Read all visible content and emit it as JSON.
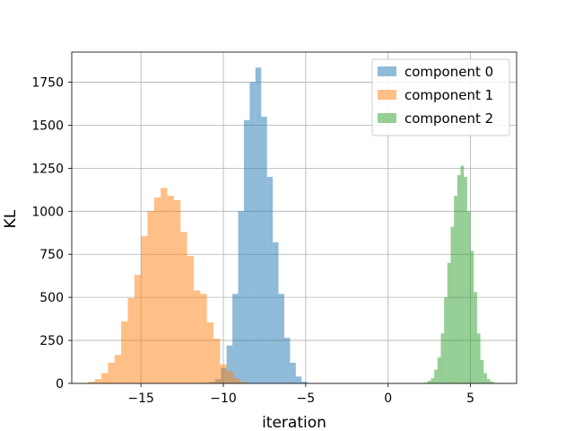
{
  "chart_data": {
    "type": "bar",
    "subtype": "histogram",
    "title": "",
    "xlabel": "iteration",
    "ylabel": "KL",
    "xlim": [
      -19.2,
      7.8
    ],
    "ylim": [
      0,
      1925
    ],
    "xticks": [
      -15,
      -10,
      -5,
      0,
      5
    ],
    "xtick_labels": [
      "−15",
      "−10",
      "−5",
      "0",
      "5"
    ],
    "yticks": [
      0,
      250,
      500,
      750,
      1000,
      1250,
      1500,
      1750
    ],
    "ytick_labels": [
      "0",
      "250",
      "500",
      "750",
      "1000",
      "1250",
      "1500",
      "1750"
    ],
    "grid": true,
    "legend_position": "top-right",
    "series": [
      {
        "name": "component 0",
        "color": "#1f77b4",
        "opacity": 0.5,
        "bin_edges": [
          -11.2,
          -10.85,
          -10.5,
          -10.15,
          -9.8,
          -9.45,
          -9.1,
          -8.75,
          -8.4,
          -8.05,
          -7.7,
          -7.35,
          -7.0,
          -6.65,
          -6.3,
          -5.95,
          -5.6,
          -5.25,
          -4.9
        ],
        "counts": [
          3,
          8,
          25,
          90,
          220,
          520,
          1000,
          1530,
          1750,
          1835,
          1550,
          1200,
          820,
          520,
          265,
          120,
          40,
          10
        ]
      },
      {
        "name": "component 1",
        "color": "#ff7f0e",
        "opacity": 0.5,
        "bin_edges": [
          -18.2,
          -17.8,
          -17.4,
          -17.0,
          -16.6,
          -16.2,
          -15.8,
          -15.4,
          -15.0,
          -14.6,
          -14.2,
          -13.8,
          -13.4,
          -13.0,
          -12.6,
          -12.2,
          -11.8,
          -11.4,
          -11.0,
          -10.6,
          -10.2,
          -9.8,
          -9.4,
          -9.0,
          -8.6
        ],
        "counts": [
          10,
          25,
          60,
          120,
          165,
          360,
          495,
          630,
          855,
          1000,
          1080,
          1135,
          1090,
          1065,
          880,
          740,
          540,
          520,
          355,
          260,
          110,
          70,
          30,
          10
        ]
      },
      {
        "name": "component 2",
        "color": "#2ca02c",
        "opacity": 0.5,
        "bin_edges": [
          2.2,
          2.4,
          2.6,
          2.8,
          3.0,
          3.2,
          3.4,
          3.6,
          3.8,
          4.0,
          4.2,
          4.4,
          4.6,
          4.8,
          5.0,
          5.2,
          5.4,
          5.6,
          5.8,
          6.0,
          6.2,
          6.4,
          6.6
        ],
        "counts": [
          5,
          15,
          30,
          80,
          150,
          290,
          500,
          700,
          910,
          1090,
          1210,
          1265,
          1200,
          1000,
          770,
          530,
          290,
          135,
          60,
          25,
          10,
          3
        ]
      }
    ]
  }
}
